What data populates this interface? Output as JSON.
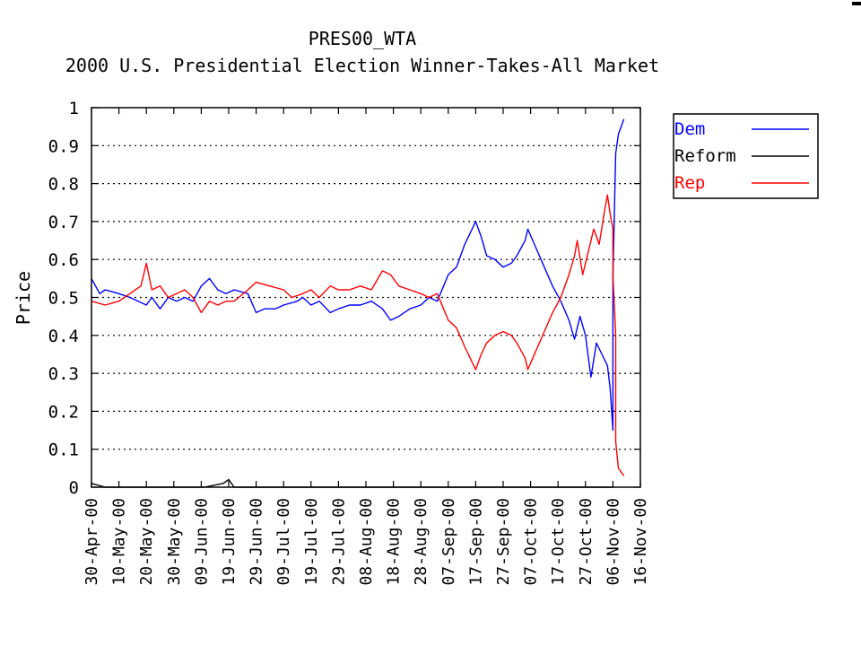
{
  "chart_data": {
    "type": "line",
    "title": "PRES00_WTA",
    "subtitle": "2000 U.S. Presidential Election Winner-Takes-All Market",
    "xlabel": "",
    "ylabel": "Price",
    "ylim": [
      0,
      1
    ],
    "xlim": [
      "2000-04-30",
      "2000-11-16"
    ],
    "y_ticks": [
      "0",
      "0.1",
      "0.2",
      "0.3",
      "0.4",
      "0.5",
      "0.6",
      "0.7",
      "0.8",
      "0.9",
      "1"
    ],
    "x_ticks": [
      "30-Apr-00",
      "10-May-00",
      "20-May-00",
      "30-May-00",
      "09-Jun-00",
      "19-Jun-00",
      "29-Jun-00",
      "09-Jul-00",
      "19-Jul-00",
      "29-Jul-00",
      "08-Aug-00",
      "18-Aug-00",
      "28-Aug-00",
      "07-Sep-00",
      "17-Sep-00",
      "27-Sep-00",
      "07-Oct-00",
      "17-Oct-00",
      "27-Oct-00",
      "06-Nov-00",
      "16-Nov-00"
    ],
    "grid": "horizontal dotted",
    "legend_position": "right",
    "series": [
      {
        "name": "Dem",
        "color": "#0000ff",
        "points": [
          [
            "2000-04-30",
            0.55
          ],
          [
            "2000-05-03",
            0.51
          ],
          [
            "2000-05-05",
            0.52
          ],
          [
            "2000-05-10",
            0.51
          ],
          [
            "2000-05-14",
            0.5
          ],
          [
            "2000-05-17",
            0.49
          ],
          [
            "2000-05-20",
            0.48
          ],
          [
            "2000-05-22",
            0.5
          ],
          [
            "2000-05-25",
            0.47
          ],
          [
            "2000-05-28",
            0.5
          ],
          [
            "2000-05-31",
            0.49
          ],
          [
            "2000-06-03",
            0.5
          ],
          [
            "2000-06-06",
            0.49
          ],
          [
            "2000-06-09",
            0.53
          ],
          [
            "2000-06-12",
            0.55
          ],
          [
            "2000-06-15",
            0.52
          ],
          [
            "2000-06-18",
            0.51
          ],
          [
            "2000-06-21",
            0.52
          ],
          [
            "2000-06-26",
            0.51
          ],
          [
            "2000-06-29",
            0.46
          ],
          [
            "2000-07-02",
            0.47
          ],
          [
            "2000-07-06",
            0.47
          ],
          [
            "2000-07-09",
            0.48
          ],
          [
            "2000-07-14",
            0.49
          ],
          [
            "2000-07-16",
            0.5
          ],
          [
            "2000-07-19",
            0.48
          ],
          [
            "2000-07-22",
            0.49
          ],
          [
            "2000-07-26",
            0.46
          ],
          [
            "2000-07-29",
            0.47
          ],
          [
            "2000-08-02",
            0.48
          ],
          [
            "2000-08-06",
            0.48
          ],
          [
            "2000-08-10",
            0.49
          ],
          [
            "2000-08-14",
            0.47
          ],
          [
            "2000-08-17",
            0.44
          ],
          [
            "2000-08-20",
            0.45
          ],
          [
            "2000-08-24",
            0.47
          ],
          [
            "2000-08-28",
            0.48
          ],
          [
            "2000-08-31",
            0.5
          ],
          [
            "2000-09-03",
            0.49
          ],
          [
            "2000-09-07",
            0.56
          ],
          [
            "2000-09-10",
            0.58
          ],
          [
            "2000-09-13",
            0.64
          ],
          [
            "2000-09-17",
            0.7
          ],
          [
            "2000-09-19",
            0.66
          ],
          [
            "2000-09-21",
            0.61
          ],
          [
            "2000-09-24",
            0.6
          ],
          [
            "2000-09-27",
            0.58
          ],
          [
            "2000-09-30",
            0.59
          ],
          [
            "2000-10-02",
            0.61
          ],
          [
            "2000-10-05",
            0.65
          ],
          [
            "2000-10-06",
            0.68
          ],
          [
            "2000-10-09",
            0.63
          ],
          [
            "2000-10-12",
            0.58
          ],
          [
            "2000-10-15",
            0.53
          ],
          [
            "2000-10-18",
            0.49
          ],
          [
            "2000-10-21",
            0.44
          ],
          [
            "2000-10-23",
            0.39
          ],
          [
            "2000-10-25",
            0.45
          ],
          [
            "2000-10-27",
            0.4
          ],
          [
            "2000-10-29",
            0.29
          ],
          [
            "2000-10-31",
            0.38
          ],
          [
            "2000-11-02",
            0.35
          ],
          [
            "2000-11-04",
            0.32
          ],
          [
            "2000-11-05",
            0.26
          ],
          [
            "2000-11-06",
            0.15
          ],
          [
            "2000-11-06",
            0.33
          ],
          [
            "2000-11-06",
            0.55
          ],
          [
            "2000-11-07",
            0.88
          ],
          [
            "2000-11-08",
            0.93
          ],
          [
            "2000-11-10",
            0.97
          ]
        ]
      },
      {
        "name": "Reform",
        "color": "#000000",
        "points": [
          [
            "2000-04-30",
            0.01
          ],
          [
            "2000-05-05",
            0.0
          ],
          [
            "2000-06-10",
            0.0
          ],
          [
            "2000-06-17",
            0.01
          ],
          [
            "2000-06-19",
            0.02
          ],
          [
            "2000-06-21",
            0.0
          ],
          [
            "2000-07-09",
            0.0
          ],
          [
            "2000-08-31",
            0.0
          ],
          [
            "2000-09-20",
            0.0
          ],
          [
            "2000-11-06",
            0.0
          ]
        ]
      },
      {
        "name": "Rep",
        "color": "#ff0000",
        "points": [
          [
            "2000-04-30",
            0.49
          ],
          [
            "2000-05-05",
            0.48
          ],
          [
            "2000-05-10",
            0.49
          ],
          [
            "2000-05-14",
            0.51
          ],
          [
            "2000-05-18",
            0.53
          ],
          [
            "2000-05-20",
            0.59
          ],
          [
            "2000-05-22",
            0.52
          ],
          [
            "2000-05-25",
            0.53
          ],
          [
            "2000-05-28",
            0.5
          ],
          [
            "2000-05-31",
            0.51
          ],
          [
            "2000-06-03",
            0.52
          ],
          [
            "2000-06-06",
            0.5
          ],
          [
            "2000-06-09",
            0.46
          ],
          [
            "2000-06-12",
            0.49
          ],
          [
            "2000-06-15",
            0.48
          ],
          [
            "2000-06-18",
            0.49
          ],
          [
            "2000-06-21",
            0.49
          ],
          [
            "2000-06-26",
            0.52
          ],
          [
            "2000-06-29",
            0.54
          ],
          [
            "2000-07-04",
            0.53
          ],
          [
            "2000-07-09",
            0.52
          ],
          [
            "2000-07-12",
            0.5
          ],
          [
            "2000-07-16",
            0.51
          ],
          [
            "2000-07-19",
            0.52
          ],
          [
            "2000-07-22",
            0.5
          ],
          [
            "2000-07-26",
            0.53
          ],
          [
            "2000-07-29",
            0.52
          ],
          [
            "2000-08-02",
            0.52
          ],
          [
            "2000-08-06",
            0.53
          ],
          [
            "2000-08-10",
            0.52
          ],
          [
            "2000-08-14",
            0.57
          ],
          [
            "2000-08-17",
            0.56
          ],
          [
            "2000-08-20",
            0.53
          ],
          [
            "2000-08-24",
            0.52
          ],
          [
            "2000-08-28",
            0.51
          ],
          [
            "2000-08-31",
            0.5
          ],
          [
            "2000-09-03",
            0.51
          ],
          [
            "2000-09-07",
            0.44
          ],
          [
            "2000-09-10",
            0.42
          ],
          [
            "2000-09-13",
            0.37
          ],
          [
            "2000-09-17",
            0.31
          ],
          [
            "2000-09-19",
            0.35
          ],
          [
            "2000-09-21",
            0.38
          ],
          [
            "2000-09-24",
            0.4
          ],
          [
            "2000-09-27",
            0.41
          ],
          [
            "2000-09-30",
            0.4
          ],
          [
            "2000-10-02",
            0.38
          ],
          [
            "2000-10-05",
            0.34
          ],
          [
            "2000-10-06",
            0.31
          ],
          [
            "2000-10-09",
            0.36
          ],
          [
            "2000-10-12",
            0.41
          ],
          [
            "2000-10-15",
            0.46
          ],
          [
            "2000-10-18",
            0.5
          ],
          [
            "2000-10-21",
            0.56
          ],
          [
            "2000-10-23",
            0.61
          ],
          [
            "2000-10-24",
            0.65
          ],
          [
            "2000-10-26",
            0.56
          ],
          [
            "2000-10-28",
            0.62
          ],
          [
            "2000-10-30",
            0.68
          ],
          [
            "2000-11-01",
            0.64
          ],
          [
            "2000-11-03",
            0.73
          ],
          [
            "2000-11-04",
            0.77
          ],
          [
            "2000-11-05",
            0.72
          ],
          [
            "2000-11-06",
            0.68
          ],
          [
            "2000-11-06",
            0.56
          ],
          [
            "2000-11-07",
            0.4
          ],
          [
            "2000-11-07",
            0.12
          ],
          [
            "2000-11-08",
            0.05
          ],
          [
            "2000-11-10",
            0.03
          ]
        ]
      }
    ]
  }
}
